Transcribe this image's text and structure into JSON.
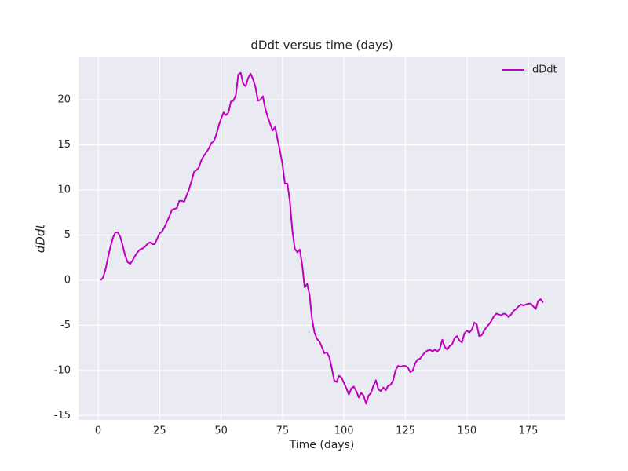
{
  "chart_data": {
    "type": "line",
    "title": "dDdt versus time (days)",
    "xlabel": "Time (days)",
    "ylabel": "dDdt",
    "x": [
      1,
      2,
      3,
      4,
      5,
      6,
      7,
      8,
      9,
      10,
      11,
      12,
      13,
      14,
      15,
      16,
      17,
      18,
      19,
      20,
      21,
      22,
      23,
      24,
      25,
      26,
      27,
      28,
      29,
      30,
      31,
      32,
      33,
      34,
      35,
      36,
      37,
      38,
      39,
      40,
      41,
      42,
      43,
      44,
      45,
      46,
      47,
      48,
      49,
      50,
      51,
      52,
      53,
      54,
      55,
      56,
      57,
      58,
      59,
      60,
      61,
      62,
      63,
      64,
      65,
      66,
      67,
      68,
      69,
      70,
      71,
      72,
      73,
      74,
      75,
      76,
      77,
      78,
      79,
      80,
      81,
      82,
      83,
      84,
      85,
      86,
      87,
      88,
      89,
      90,
      91,
      92,
      93,
      94,
      95,
      96,
      97,
      98,
      99,
      100,
      101,
      102,
      103,
      104,
      105,
      106,
      107,
      108,
      109,
      110,
      111,
      112,
      113,
      114,
      115,
      116,
      117,
      118,
      119,
      120,
      121,
      122,
      123,
      124,
      125,
      126,
      127,
      128,
      129,
      130,
      131,
      132,
      133,
      134,
      135,
      136,
      137,
      138,
      139,
      140,
      141,
      142,
      143,
      144,
      145,
      146,
      147,
      148,
      149,
      150,
      151,
      152,
      153,
      154,
      155,
      156,
      157,
      158,
      159,
      160,
      161,
      162,
      163,
      164,
      165,
      166,
      167,
      168,
      169,
      170,
      171,
      172,
      173,
      174,
      175,
      176,
      177,
      178,
      179,
      180,
      181
    ],
    "series": [
      {
        "name": "dDdt",
        "color": "#bf00bf",
        "values": [
          0,
          0.3,
          1.2,
          2.5,
          3.7,
          4.7,
          5.3,
          5.3,
          4.8,
          3.8,
          2.7,
          2.0,
          1.8,
          2.2,
          2.7,
          3.1,
          3.4,
          3.5,
          3.7,
          4.0,
          4.2,
          4.0,
          4.0,
          4.6,
          5.2,
          5.4,
          5.9,
          6.5,
          7.1,
          7.8,
          7.9,
          8.0,
          8.8,
          8.8,
          8.7,
          9.4,
          10.1,
          11.0,
          12.0,
          12.2,
          12.5,
          13.3,
          13.8,
          14.2,
          14.6,
          15.2,
          15.4,
          16.1,
          17.1,
          17.9,
          18.6,
          18.3,
          18.6,
          19.8,
          19.9,
          20.5,
          22.8,
          23.0,
          21.8,
          21.5,
          22.4,
          22.9,
          22.3,
          21.4,
          19.9,
          20.0,
          20.4,
          19.0,
          18.1,
          17.3,
          16.6,
          17.0,
          15.6,
          14.3,
          12.8,
          10.7,
          10.7,
          8.7,
          5.5,
          3.5,
          3.1,
          3.4,
          1.7,
          -0.8,
          -0.4,
          -1.6,
          -4.3,
          -5.8,
          -6.5,
          -6.8,
          -7.4,
          -8.1,
          -8.0,
          -8.5,
          -9.7,
          -11.1,
          -11.3,
          -10.6,
          -10.8,
          -11.4,
          -12.0,
          -12.7,
          -12.0,
          -11.8,
          -12.3,
          -13.0,
          -12.5,
          -12.8,
          -13.7,
          -12.8,
          -12.5,
          -11.7,
          -11.1,
          -12.1,
          -12.3,
          -11.9,
          -12.2,
          -11.7,
          -11.6,
          -11.1,
          -10.0,
          -9.5,
          -9.6,
          -9.5,
          -9.5,
          -9.7,
          -10.2,
          -10.0,
          -9.2,
          -8.8,
          -8.7,
          -8.3,
          -8.0,
          -7.8,
          -7.7,
          -7.9,
          -7.7,
          -7.9,
          -7.6,
          -6.6,
          -7.4,
          -7.7,
          -7.3,
          -7.1,
          -6.4,
          -6.2,
          -6.7,
          -6.9,
          -5.9,
          -5.6,
          -5.8,
          -5.5,
          -4.7,
          -4.9,
          -6.2,
          -6.1,
          -5.6,
          -5.2,
          -4.9,
          -4.5,
          -4.0,
          -3.7,
          -3.8,
          -3.9,
          -3.7,
          -3.8,
          -4.1,
          -3.8,
          -3.4,
          -3.2,
          -2.9,
          -2.7,
          -2.8,
          -2.7,
          -2.6,
          -2.6,
          -2.9,
          -3.2,
          -2.3,
          -2.1,
          -2.5
        ]
      }
    ],
    "xlim": [
      -8,
      190
    ],
    "ylim": [
      -15.5,
      24.8
    ],
    "xticks": [
      0,
      25,
      50,
      75,
      100,
      125,
      150,
      175
    ],
    "yticks": [
      -15,
      -10,
      -5,
      0,
      5,
      10,
      15,
      20
    ],
    "grid": true,
    "legend": "upper right"
  }
}
